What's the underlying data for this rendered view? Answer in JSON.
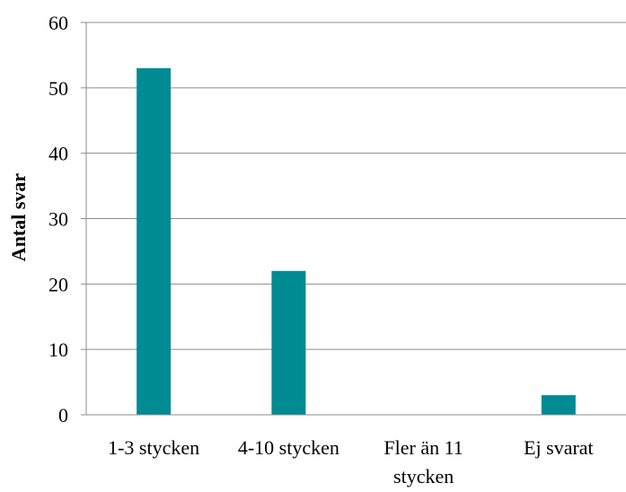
{
  "chart_data": {
    "type": "bar",
    "title": "",
    "xlabel": "",
    "ylabel": "Antal svar",
    "categories": [
      "1-3 stycken",
      "4-10 stycken",
      "Fler än 11 stycken",
      "Ej svarat"
    ],
    "category_lines": [
      [
        "1-3 stycken"
      ],
      [
        "4-10 stycken"
      ],
      [
        "Fler än 11",
        "stycken"
      ],
      [
        "Ej svarat"
      ]
    ],
    "series": [
      {
        "values": [
          53,
          22,
          0,
          3
        ]
      }
    ],
    "ylim": [
      0,
      60
    ],
    "yticks": [
      0,
      10,
      20,
      30,
      40,
      50,
      60
    ],
    "grid": true,
    "legend": "none",
    "colors": {
      "bar": "#008B93",
      "grid": "#8C8C8C",
      "axis": "#8C8C8C"
    }
  }
}
